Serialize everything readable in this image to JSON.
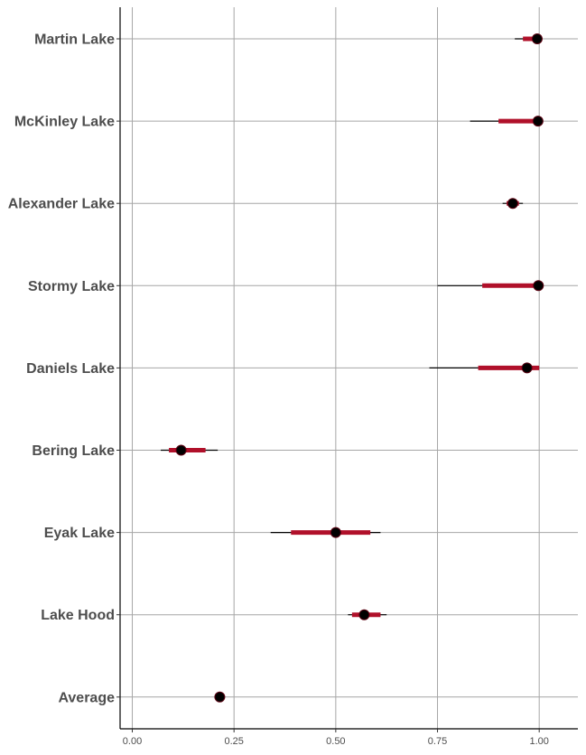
{
  "chart_data": {
    "type": "forest",
    "title": "",
    "xlabel": "",
    "ylabel": "",
    "xlim": [
      -0.03,
      1.095
    ],
    "x_ticks": [
      0.0,
      0.25,
      0.5,
      0.75,
      1.0
    ],
    "x_tick_labels": [
      "0.00",
      "0.25",
      "0.50",
      "0.75",
      "1.00"
    ],
    "grid": true,
    "colors": {
      "interval_inner": "#b0102a",
      "interval_outer": "#000000",
      "point": "#000000",
      "grid": "#a6a6a6"
    },
    "categories": [
      "Martin Lake",
      "McKinley Lake",
      "Alexander Lake",
      "Stormy Lake",
      "Daniels Lake",
      "Bering Lake",
      "Eyak Lake",
      "Lake Hood",
      "Average"
    ],
    "estimates": [
      {
        "name": "Martin Lake",
        "value": 0.995,
        "inner": [
          0.96,
          1.0
        ],
        "outer": [
          0.94,
          1.0
        ]
      },
      {
        "name": "McKinley Lake",
        "value": 0.997,
        "inner": [
          0.9,
          1.0
        ],
        "outer": [
          0.83,
          1.0
        ]
      },
      {
        "name": "Alexander Lake",
        "value": 0.935,
        "inner": [
          0.92,
          0.95
        ],
        "outer": [
          0.91,
          0.96
        ]
      },
      {
        "name": "Stormy Lake",
        "value": 0.998,
        "inner": [
          0.86,
          1.0
        ],
        "outer": [
          0.75,
          1.0
        ]
      },
      {
        "name": "Daniels Lake",
        "value": 0.97,
        "inner": [
          0.85,
          1.0
        ],
        "outer": [
          0.73,
          1.0
        ]
      },
      {
        "name": "Bering Lake",
        "value": 0.12,
        "inner": [
          0.09,
          0.18
        ],
        "outer": [
          0.07,
          0.21
        ]
      },
      {
        "name": "Eyak Lake",
        "value": 0.5,
        "inner": [
          0.39,
          0.585
        ],
        "outer": [
          0.34,
          0.61
        ]
      },
      {
        "name": "Lake Hood",
        "value": 0.57,
        "inner": [
          0.54,
          0.61
        ],
        "outer": [
          0.53,
          0.625
        ]
      },
      {
        "name": "Average",
        "value": 0.215,
        "inner": [
          0.21,
          0.22
        ],
        "outer": [
          0.205,
          0.225
        ]
      }
    ]
  }
}
